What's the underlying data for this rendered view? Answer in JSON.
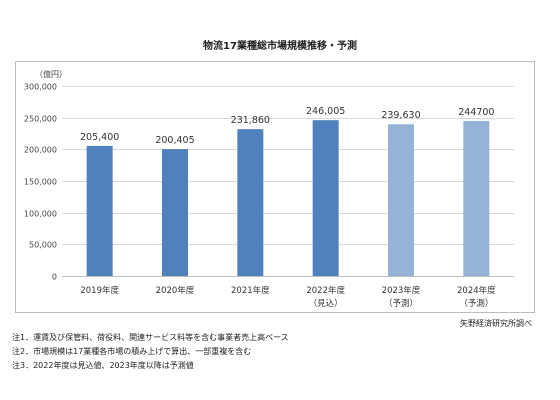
{
  "title": "物流17業種総市場規模推移・予測",
  "chart_data": {
    "type": "bar",
    "unit_label": "（億円）",
    "categories": [
      "2019年度",
      "2020年度",
      "2021年度",
      "2022年度",
      "2023年度",
      "2024年度"
    ],
    "category_sublabels": [
      "",
      "",
      "",
      "（見込）",
      "（予測）",
      "（予測）"
    ],
    "values": [
      205400,
      200405,
      231860,
      246005,
      239630,
      244700
    ],
    "value_labels": [
      "205,400",
      "200,405",
      "231,860",
      "246,005",
      "239,630",
      "244700"
    ],
    "bar_colors": [
      "#4f81bd",
      "#4f81bd",
      "#4f81bd",
      "#4f81bd",
      "#95b3d7",
      "#95b3d7"
    ],
    "ylim": [
      0,
      300000
    ],
    "yticks": [
      0,
      50000,
      100000,
      150000,
      200000,
      250000,
      300000
    ],
    "ytick_labels": [
      "0",
      "50,000",
      "100,000",
      "150,000",
      "200,000",
      "250,000",
      "300,000"
    ],
    "grid": true
  },
  "notes": [
    "注1．運賃及び保管料、荷役料、関連サービス料等を含む事業者売上高ベース",
    "注2．市場規模は17業種各市場の積み上げで算出、一部重複を含む",
    "注3．2022年度は見込値、2023年度以降は予測値"
  ],
  "source": "矢野経済研究所調べ"
}
